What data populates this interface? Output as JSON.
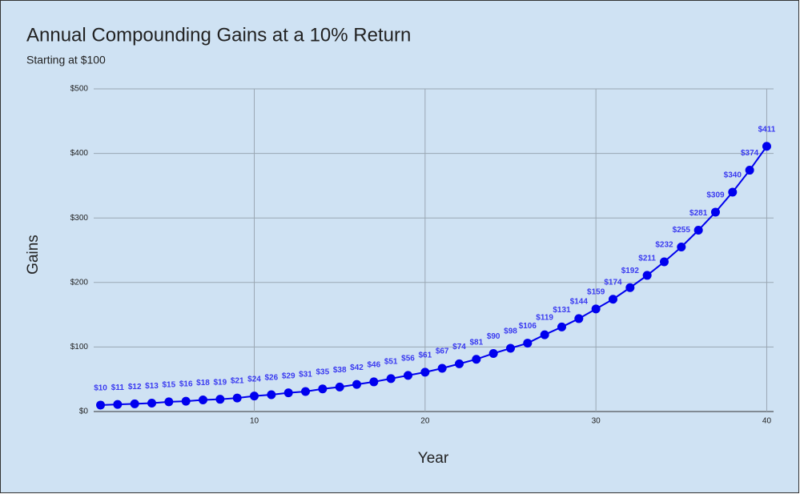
{
  "chart_data": {
    "type": "line",
    "title": "Annual Compounding Gains at a 10% Return",
    "subtitle": "Starting at $100",
    "x_label": "Year",
    "y_label": "Gains",
    "x": [
      1,
      2,
      3,
      4,
      5,
      6,
      7,
      8,
      9,
      10,
      11,
      12,
      13,
      14,
      15,
      16,
      17,
      18,
      19,
      20,
      21,
      22,
      23,
      24,
      25,
      26,
      27,
      28,
      29,
      30,
      31,
      32,
      33,
      34,
      35,
      36,
      37,
      38,
      39,
      40
    ],
    "values": [
      10,
      11,
      12,
      13,
      15,
      16,
      18,
      19,
      21,
      24,
      26,
      29,
      31,
      35,
      38,
      42,
      46,
      51,
      56,
      61,
      67,
      74,
      81,
      90,
      98,
      106,
      119,
      131,
      144,
      159,
      174,
      192,
      211,
      232,
      255,
      281,
      309,
      340,
      374,
      411
    ],
    "value_labels": [
      "$10",
      "$11",
      "$12",
      "$13",
      "$15",
      "$16",
      "$18",
      "$19",
      "$21",
      "$24",
      "$26",
      "$29",
      "$31",
      "$35",
      "$38",
      "$42",
      "$46",
      "$51",
      "$56",
      "$61",
      "$67",
      "$74",
      "$81",
      "$90",
      "$98",
      "$106",
      "$119",
      "$131",
      "$144",
      "$159",
      "$174",
      "$192",
      "$211",
      "$232",
      "$255",
      "$281",
      "$309",
      "$340",
      "$374",
      "$411"
    ],
    "color": "#0000ee",
    "xlim": [
      0.6,
      40.4
    ],
    "xticks": [
      10,
      20,
      30,
      40
    ],
    "ylim": [
      0,
      500
    ],
    "yticks": [
      {
        "value": 0,
        "label": "$0"
      },
      {
        "value": 100,
        "label": "$100"
      },
      {
        "value": 200,
        "label": "$200"
      },
      {
        "value": 300,
        "label": "$300"
      },
      {
        "value": 400,
        "label": "$400"
      },
      {
        "value": 500,
        "label": "$500"
      }
    ],
    "grid": true
  }
}
